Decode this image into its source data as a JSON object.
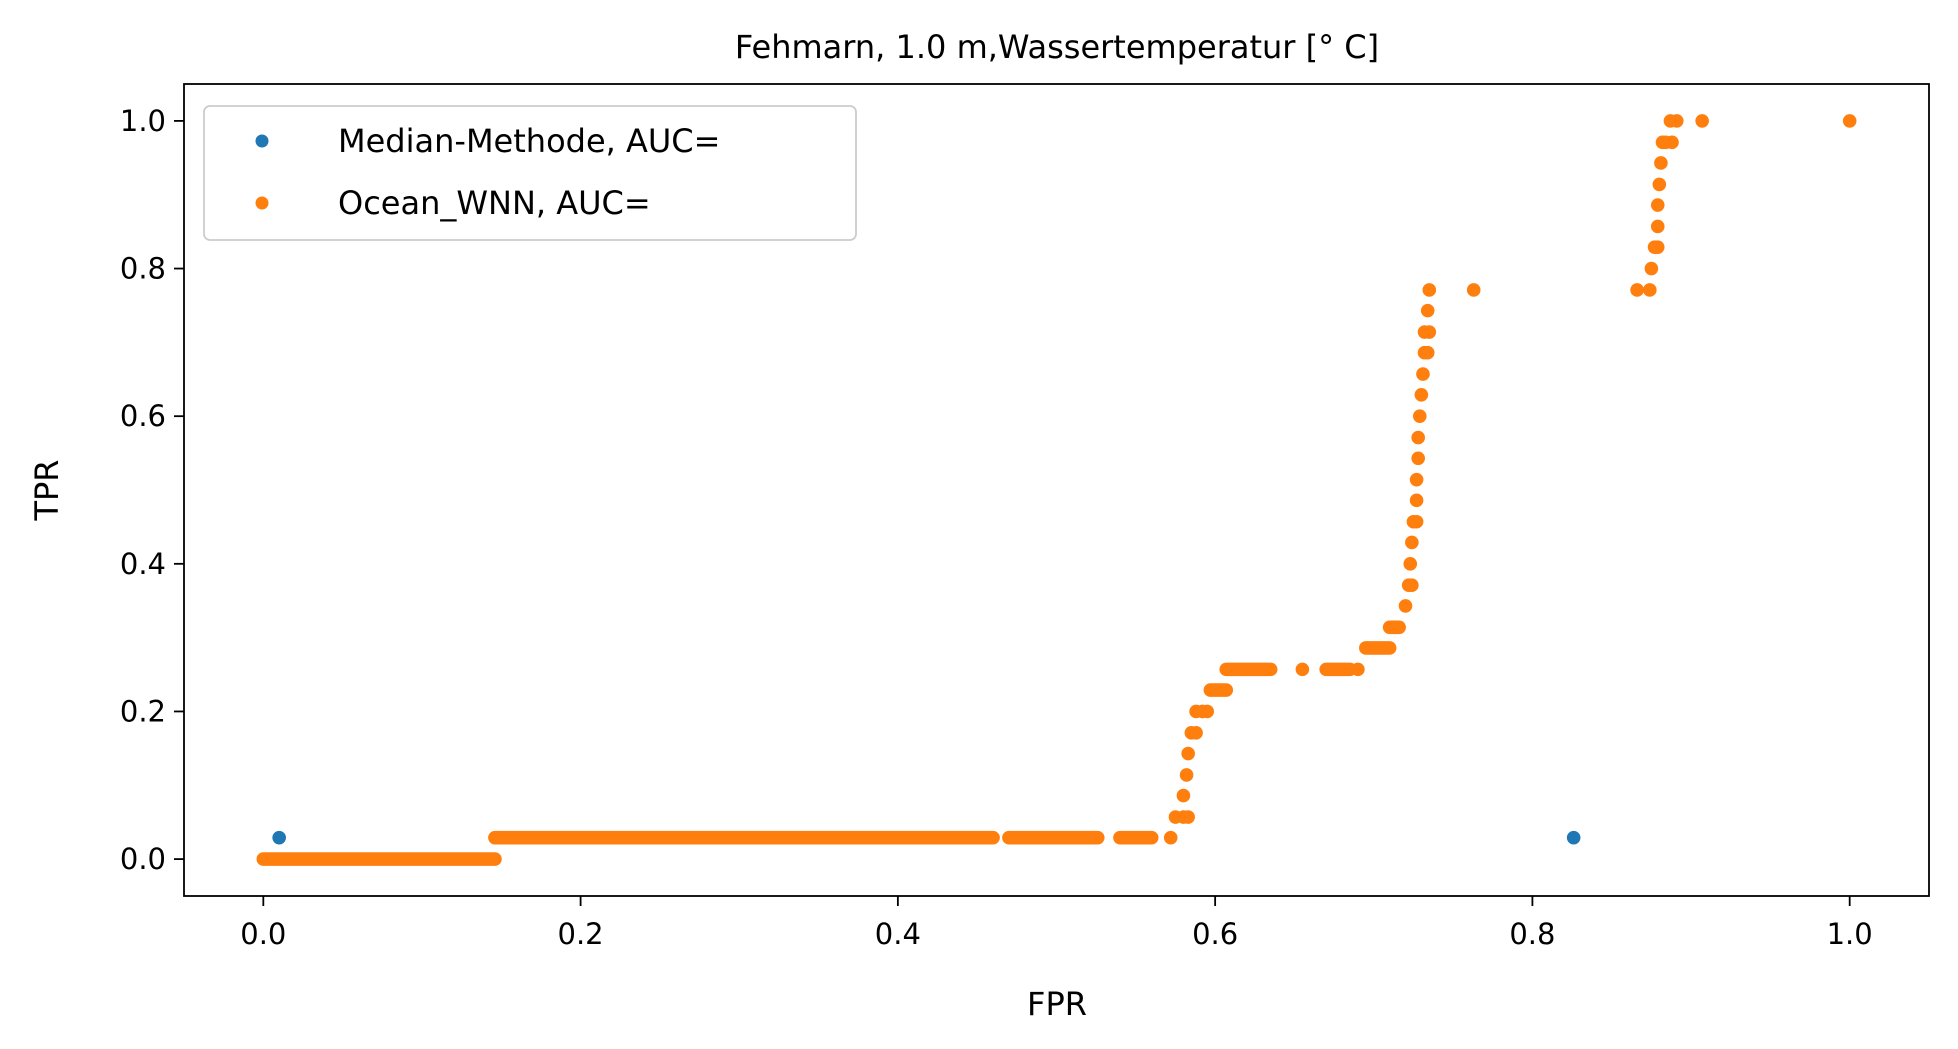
{
  "chart_data": {
    "type": "scatter",
    "title": "Fehmarn, 1.0 m,Wassertemperatur [° C]",
    "xlabel": "FPR",
    "ylabel": "TPR",
    "xlim": [
      -0.05,
      1.05
    ],
    "ylim": [
      -0.05,
      1.05
    ],
    "xticks": [
      0.0,
      0.2,
      0.4,
      0.6,
      0.8,
      1.0
    ],
    "xtick_labels": [
      "0.0",
      "0.2",
      "0.4",
      "0.6",
      "0.8",
      "1.0"
    ],
    "yticks": [
      0.0,
      0.2,
      0.4,
      0.6,
      0.8,
      1.0
    ],
    "ytick_labels": [
      "0.0",
      "0.2",
      "0.4",
      "0.6",
      "0.8",
      "1.0"
    ],
    "grid": false,
    "legend_position": "top-left",
    "series": [
      {
        "name": "Median-Methode, AUC=",
        "color": "#1f77b4",
        "points": [
          [
            0.01,
            0.029
          ],
          [
            0.826,
            0.029
          ]
        ]
      },
      {
        "name": "Ocean_WNN, AUC=",
        "color": "#ff7f0e",
        "segments": [
          {
            "x_from": 0.0,
            "x_to": 0.146,
            "y": 0.0
          },
          {
            "x_from": 0.146,
            "x_to": 0.46,
            "y": 0.029
          },
          {
            "x_from": 0.47,
            "x_to": 0.526,
            "y": 0.029
          },
          {
            "x_from": 0.54,
            "x_to": 0.56,
            "y": 0.029
          },
          {
            "x_from": 0.597,
            "x_to": 0.607,
            "y": 0.229
          },
          {
            "x_from": 0.607,
            "x_to": 0.635,
            "y": 0.257
          },
          {
            "x_from": 0.67,
            "x_to": 0.685,
            "y": 0.257
          },
          {
            "x_from": 0.695,
            "x_to": 0.71,
            "y": 0.286
          },
          {
            "x_from": 0.71,
            "x_to": 0.716,
            "y": 0.314
          }
        ],
        "points": [
          [
            0.572,
            0.029
          ],
          [
            0.575,
            0.057
          ],
          [
            0.58,
            0.057
          ],
          [
            0.583,
            0.057
          ],
          [
            0.58,
            0.086
          ],
          [
            0.582,
            0.114
          ],
          [
            0.583,
            0.143
          ],
          [
            0.585,
            0.171
          ],
          [
            0.588,
            0.171
          ],
          [
            0.588,
            0.2
          ],
          [
            0.592,
            0.2
          ],
          [
            0.595,
            0.2
          ],
          [
            0.655,
            0.257
          ],
          [
            0.69,
            0.257
          ],
          [
            0.72,
            0.343
          ],
          [
            0.722,
            0.371
          ],
          [
            0.724,
            0.371
          ],
          [
            0.723,
            0.4
          ],
          [
            0.724,
            0.429
          ],
          [
            0.725,
            0.457
          ],
          [
            0.727,
            0.457
          ],
          [
            0.727,
            0.486
          ],
          [
            0.727,
            0.514
          ],
          [
            0.728,
            0.543
          ],
          [
            0.728,
            0.571
          ],
          [
            0.729,
            0.6
          ],
          [
            0.73,
            0.629
          ],
          [
            0.731,
            0.657
          ],
          [
            0.732,
            0.686
          ],
          [
            0.734,
            0.686
          ],
          [
            0.732,
            0.714
          ],
          [
            0.735,
            0.714
          ],
          [
            0.734,
            0.743
          ],
          [
            0.735,
            0.771
          ],
          [
            0.763,
            0.771
          ],
          [
            0.866,
            0.771
          ],
          [
            0.874,
            0.771
          ],
          [
            0.875,
            0.8
          ],
          [
            0.877,
            0.829
          ],
          [
            0.879,
            0.829
          ],
          [
            0.879,
            0.857
          ],
          [
            0.879,
            0.886
          ],
          [
            0.88,
            0.914
          ],
          [
            0.881,
            0.943
          ],
          [
            0.882,
            0.971
          ],
          [
            0.884,
            0.971
          ],
          [
            0.888,
            0.971
          ],
          [
            0.887,
            1.0
          ],
          [
            0.891,
            1.0
          ],
          [
            0.907,
            1.0
          ],
          [
            1.0,
            1.0
          ]
        ]
      }
    ]
  }
}
